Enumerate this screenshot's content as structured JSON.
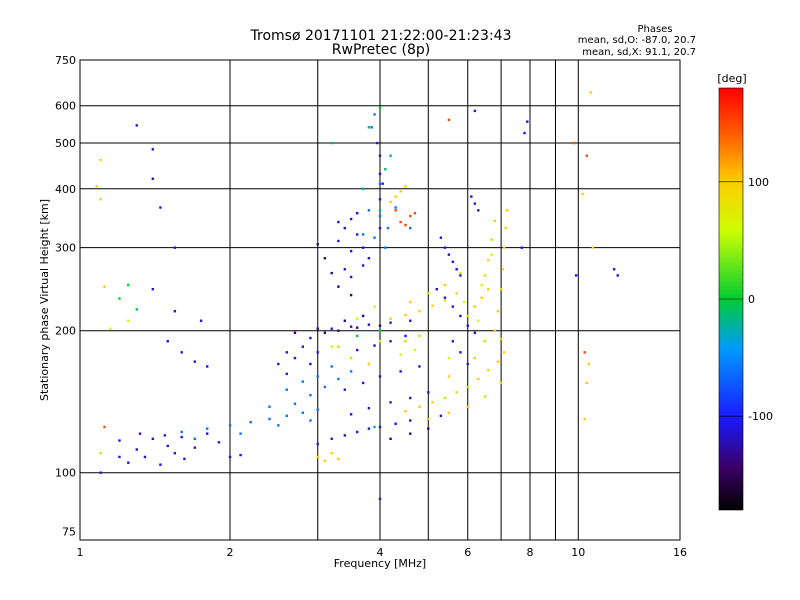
{
  "chart_data": {
    "type": "scatter",
    "title": "Tromsø 20171101 21:22:00-21:23:43",
    "subtitle": "RwPretec (8p)",
    "xlabel": "Frequency [MHz]",
    "ylabel": "Stationary phase Virtual Height [km]",
    "x_scale": "log",
    "y_scale": "log",
    "xlim": [
      1,
      16
    ],
    "ylim": [
      72,
      750
    ],
    "x_ticks": [
      1,
      2,
      4,
      6,
      8,
      10,
      16
    ],
    "y_ticks": [
      75,
      100,
      200,
      300,
      400,
      500,
      600,
      750
    ],
    "x_grid": [
      1,
      2,
      3,
      4,
      5,
      6,
      7,
      8,
      9,
      10,
      16
    ],
    "y_grid": [
      100,
      200,
      300,
      400,
      500,
      600
    ],
    "grid": true,
    "legend": {
      "title": "Phases",
      "line1": "mean, sd,O: -87.0, 20.7",
      "line2": "mean, sd,X:  91.1, 20.7"
    },
    "colorbar": {
      "label": "[deg]",
      "range": [
        -180,
        180
      ],
      "ticks": [
        100,
        0,
        -100
      ],
      "tick_labels": [
        "100",
        "0",
        "-100"
      ]
    },
    "series": [
      {
        "color_value": -110,
        "points": [
          [
            1.2,
            117
          ],
          [
            1.3,
            112
          ],
          [
            1.4,
            118
          ],
          [
            1.5,
            114
          ],
          [
            1.6,
            119
          ],
          [
            1.7,
            113
          ],
          [
            1.25,
            105
          ],
          [
            1.35,
            108
          ],
          [
            1.45,
            104
          ],
          [
            1.55,
            110
          ],
          [
            1.8,
            121
          ],
          [
            1.9,
            116
          ],
          [
            2.0,
            108
          ],
          [
            2.1,
            109
          ],
          [
            1.2,
            108
          ],
          [
            1.32,
            121
          ],
          [
            1.48,
            120
          ],
          [
            1.62,
            107
          ],
          [
            3.0,
            115
          ],
          [
            3.2,
            118
          ],
          [
            3.4,
            120
          ],
          [
            3.6,
            122
          ],
          [
            3.8,
            124
          ],
          [
            4.0,
            125
          ],
          [
            4.3,
            127
          ],
          [
            4.6,
            129
          ],
          [
            5.0,
            130
          ],
          [
            5.3,
            132
          ],
          [
            3.5,
            133
          ],
          [
            3.8,
            137
          ],
          [
            4.2,
            141
          ],
          [
            4.6,
            144
          ],
          [
            5.0,
            148
          ],
          [
            3.4,
            150
          ],
          [
            3.7,
            155
          ],
          [
            4.0,
            160
          ],
          [
            4.4,
            164
          ],
          [
            4.8,
            168
          ],
          [
            2.6,
            162
          ],
          [
            2.7,
            175
          ],
          [
            2.8,
            185
          ],
          [
            2.9,
            193
          ],
          [
            2.5,
            170
          ],
          [
            2.6,
            180
          ],
          [
            3.2,
            202
          ],
          [
            3.5,
            204
          ],
          [
            3.8,
            206
          ],
          [
            4.2,
            208
          ],
          [
            4.6,
            210
          ],
          [
            3.6,
            182
          ],
          [
            3.9,
            186
          ],
          [
            4.2,
            190
          ],
          [
            4.5,
            195
          ],
          [
            3.3,
            310
          ],
          [
            3.4,
            330
          ],
          [
            3.5,
            345
          ],
          [
            3.6,
            320
          ],
          [
            3.7,
            300
          ],
          [
            3.8,
            285
          ],
          [
            3.4,
            270
          ],
          [
            3.5,
            260
          ],
          [
            3.6,
            355
          ],
          [
            3.5,
            295
          ],
          [
            3.3,
            340
          ],
          [
            3.7,
            275
          ],
          [
            4.0,
            330
          ],
          [
            4.0,
            380
          ],
          [
            4.0,
            430
          ],
          [
            4.0,
            470
          ],
          [
            3.95,
            500
          ],
          [
            4.05,
            410
          ],
          [
            5.3,
            315
          ],
          [
            5.4,
            300
          ],
          [
            5.5,
            290
          ],
          [
            5.6,
            280
          ],
          [
            5.7,
            270
          ],
          [
            5.8,
            262
          ],
          [
            6.1,
            385
          ],
          [
            6.2,
            372
          ],
          [
            6.3,
            360
          ],
          [
            5.2,
            245
          ],
          [
            5.4,
            235
          ],
          [
            5.6,
            225
          ],
          [
            5.8,
            215
          ],
          [
            6.0,
            205
          ],
          [
            6.2,
            198
          ],
          [
            5.6,
            190
          ],
          [
            5.8,
            180
          ],
          [
            6.0,
            170
          ],
          [
            1.1,
            100
          ],
          [
            1.4,
            485
          ],
          [
            1.4,
            420
          ],
          [
            1.45,
            365
          ],
          [
            1.3,
            545
          ],
          [
            1.55,
            300
          ],
          [
            1.5,
            190
          ],
          [
            1.6,
            180
          ],
          [
            1.7,
            172
          ],
          [
            1.8,
            168
          ],
          [
            1.4,
            245
          ],
          [
            1.55,
            220
          ],
          [
            1.75,
            210
          ],
          [
            6.2,
            585
          ],
          [
            7.9,
            555
          ],
          [
            7.8,
            525
          ],
          [
            7.7,
            300
          ],
          [
            9.9,
            262
          ],
          [
            11.8,
            270
          ],
          [
            12.0,
            262
          ],
          [
            4.0,
            88
          ],
          [
            3.0,
            180
          ],
          [
            2.9,
            170
          ]
        ]
      },
      {
        "color_value": -60,
        "points": [
          [
            1.6,
            122
          ],
          [
            1.8,
            124
          ],
          [
            2.0,
            126
          ],
          [
            2.2,
            128
          ],
          [
            2.4,
            130
          ],
          [
            2.6,
            132
          ],
          [
            2.8,
            134
          ],
          [
            3.0,
            136
          ],
          [
            1.7,
            118
          ],
          [
            2.1,
            121
          ],
          [
            2.5,
            126
          ],
          [
            2.9,
            129
          ],
          [
            2.7,
            140
          ],
          [
            2.9,
            146
          ],
          [
            3.1,
            152
          ],
          [
            3.3,
            158
          ],
          [
            3.5,
            164
          ],
          [
            2.6,
            150
          ],
          [
            3.0,
            160
          ],
          [
            3.2,
            168
          ],
          [
            2.4,
            138
          ],
          [
            2.8,
            156
          ],
          [
            4.0,
            350
          ],
          [
            3.9,
            315
          ],
          [
            4.1,
            300
          ],
          [
            4.0,
            410
          ],
          [
            3.8,
            360
          ],
          [
            4.15,
            330
          ],
          [
            4.6,
            330
          ],
          [
            4.3,
            365
          ],
          [
            3.7,
            320
          ],
          [
            3.9,
            575
          ],
          [
            3.85,
            540
          ]
        ]
      },
      {
        "color_value": -140,
        "points": [
          [
            3.0,
            305
          ],
          [
            3.1,
            285
          ],
          [
            3.2,
            265
          ],
          [
            3.3,
            248
          ],
          [
            3.5,
            238
          ],
          [
            3.0,
            202
          ],
          [
            3.3,
            200
          ],
          [
            3.6,
            203
          ],
          [
            4.0,
            205
          ],
          [
            3.1,
            198
          ],
          [
            4.2,
            118
          ],
          [
            4.6,
            121
          ],
          [
            5.0,
            124
          ],
          [
            2.7,
            198
          ],
          [
            3.4,
            210
          ],
          [
            3.7,
            215
          ]
        ]
      },
      {
        "color_value": 100,
        "points": [
          [
            4.5,
            135
          ],
          [
            4.8,
            138
          ],
          [
            5.1,
            141
          ],
          [
            5.4,
            144
          ],
          [
            5.7,
            148
          ],
          [
            6.0,
            152
          ],
          [
            6.3,
            158
          ],
          [
            6.6,
            165
          ],
          [
            6.9,
            172
          ],
          [
            7.1,
            180
          ],
          [
            5.0,
            130
          ],
          [
            5.5,
            134
          ],
          [
            6.0,
            138
          ],
          [
            6.5,
            145
          ],
          [
            7.0,
            155
          ],
          [
            6.8,
            200
          ],
          [
            6.9,
            220
          ],
          [
            7.0,
            245
          ],
          [
            7.05,
            270
          ],
          [
            7.1,
            300
          ],
          [
            7.15,
            330
          ],
          [
            7.2,
            360
          ],
          [
            6.5,
            262
          ],
          [
            6.6,
            282
          ],
          [
            6.7,
            312
          ],
          [
            6.8,
            342
          ],
          [
            6.0,
            215
          ],
          [
            6.2,
            225
          ],
          [
            6.4,
            235
          ],
          [
            6.6,
            245
          ],
          [
            4.2,
            212
          ],
          [
            4.5,
            216
          ],
          [
            4.8,
            220
          ],
          [
            5.1,
            226
          ],
          [
            5.4,
            232
          ],
          [
            5.7,
            240
          ],
          [
            4.6,
            230
          ],
          [
            5.0,
            240
          ],
          [
            5.4,
            250
          ],
          [
            5.8,
            265
          ],
          [
            3.0,
            108
          ],
          [
            3.1,
            106
          ],
          [
            3.2,
            110
          ],
          [
            3.3,
            107
          ],
          [
            4.5,
            190
          ],
          [
            4.8,
            195
          ],
          [
            3.5,
            175
          ],
          [
            3.8,
            170
          ],
          [
            3.3,
            185
          ],
          [
            4.3,
            385
          ],
          [
            4.4,
            395
          ],
          [
            4.5,
            405
          ],
          [
            4.2,
            375
          ],
          [
            6.2,
            175
          ],
          [
            6.5,
            190
          ],
          [
            7.0,
            192
          ],
          [
            5.5,
            160
          ],
          [
            1.1,
            110
          ],
          [
            1.08,
            405
          ],
          [
            1.1,
            380
          ],
          [
            10.6,
            640
          ],
          [
            10.2,
            390
          ],
          [
            10.4,
            155
          ],
          [
            10.3,
            130
          ],
          [
            10.7,
            300
          ],
          [
            1.1,
            460
          ],
          [
            1.12,
            248
          ],
          [
            10.5,
            170
          ]
        ]
      },
      {
        "color_value": 60,
        "points": [
          [
            4.0,
            190
          ],
          [
            4.4,
            178
          ],
          [
            4.7,
            182
          ],
          [
            5.5,
            175
          ],
          [
            6.3,
            210
          ],
          [
            6.7,
            290
          ],
          [
            3.6,
            212
          ],
          [
            3.9,
            225
          ],
          [
            3.2,
            185
          ],
          [
            1.25,
            210
          ],
          [
            1.15,
            202
          ],
          [
            5.9,
            230
          ],
          [
            6.4,
            250
          ]
        ]
      },
      {
        "color_value": 150,
        "points": [
          [
            4.4,
            340
          ],
          [
            4.6,
            350
          ],
          [
            4.5,
            335
          ],
          [
            4.3,
            360
          ],
          [
            5.5,
            560
          ],
          [
            9.8,
            500
          ],
          [
            1.12,
            125
          ],
          [
            10.3,
            180
          ],
          [
            4.7,
            355
          ],
          [
            10.4,
            470
          ]
        ]
      },
      {
        "color_value": 0,
        "points": [
          [
            1.25,
            250
          ],
          [
            1.2,
            234
          ],
          [
            1.3,
            222
          ],
          [
            4.0,
            595
          ],
          [
            4.0,
            200
          ],
          [
            3.6,
            195
          ]
        ]
      },
      {
        "color_value": -20,
        "points": [
          [
            3.8,
            540
          ],
          [
            3.2,
            500
          ],
          [
            4.2,
            470
          ],
          [
            4.0,
            360
          ],
          [
            3.7,
            400
          ],
          [
            4.1,
            440
          ],
          [
            3.9,
            125
          ]
        ]
      }
    ]
  }
}
